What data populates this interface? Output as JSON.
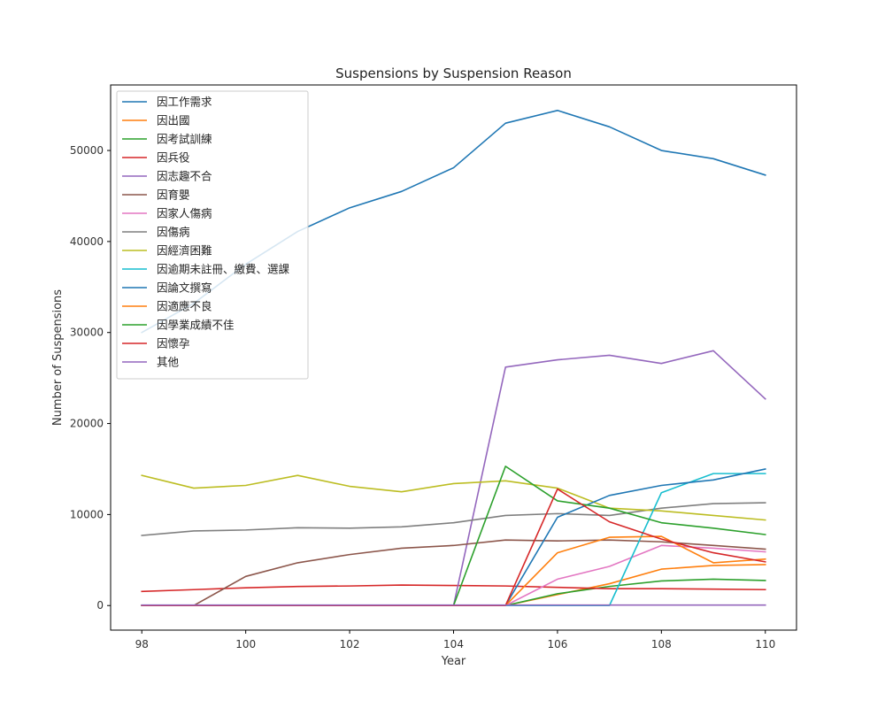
{
  "chart_data": {
    "type": "line",
    "title": "Suspensions by Suspension Reason",
    "xlabel": "Year",
    "ylabel": "Number of Suspensions",
    "x": [
      98,
      99,
      100,
      101,
      102,
      103,
      104,
      105,
      106,
      107,
      108,
      109,
      110
    ],
    "xticks": [
      "98",
      "100",
      "102",
      "104",
      "106",
      "108",
      "110"
    ],
    "yticks": [
      "0",
      "10000",
      "20000",
      "30000",
      "40000",
      "50000"
    ],
    "xlim": [
      97.4,
      110.6
    ],
    "ylim": [
      -2700,
      57200
    ],
    "grid": false,
    "legend_position": "upper-left",
    "series": [
      {
        "name": "因工作需求",
        "color": "#1f77b4",
        "values": [
          30000,
          33200,
          37500,
          41100,
          43700,
          45500,
          48100,
          53000,
          54400,
          52600,
          50000,
          49100,
          47300
        ]
      },
      {
        "name": "因出國",
        "color": "#ff7f0e",
        "values": [
          0,
          0,
          0,
          0,
          0,
          0,
          0,
          0,
          1200,
          2400,
          4000,
          4400,
          4500
        ]
      },
      {
        "name": "因考試訓練",
        "color": "#2ca02c",
        "values": [
          0,
          0,
          0,
          0,
          0,
          0,
          0,
          0,
          1300,
          2100,
          2700,
          2900,
          2750
        ]
      },
      {
        "name": "因兵役",
        "color": "#d62728",
        "values": [
          1550,
          1750,
          1950,
          2100,
          2150,
          2250,
          2200,
          2150,
          2000,
          1850,
          1850,
          1800,
          1750
        ]
      },
      {
        "name": "因志趣不合",
        "color": "#9467bd",
        "values": [
          0,
          0,
          0,
          0,
          0,
          0,
          0,
          26200,
          27000,
          27500,
          26600,
          28000,
          22700
        ]
      },
      {
        "name": "因育嬰",
        "color": "#8c564b",
        "values": [
          0,
          0,
          3200,
          4700,
          5600,
          6300,
          6600,
          7200,
          7100,
          7200,
          7000,
          6600,
          6200
        ]
      },
      {
        "name": "因家人傷病",
        "color": "#e377c2",
        "values": [
          0,
          0,
          0,
          0,
          0,
          0,
          0,
          0,
          2900,
          4300,
          6600,
          6300,
          5900
        ]
      },
      {
        "name": "因傷病",
        "color": "#7f7f7f",
        "values": [
          7700,
          8200,
          8300,
          8550,
          8500,
          8650,
          9100,
          9900,
          10100,
          9900,
          10700,
          11200,
          11300
        ]
      },
      {
        "name": "因經濟困難",
        "color": "#bcbd22",
        "values": [
          14300,
          12900,
          13200,
          14300,
          13100,
          12500,
          13400,
          13700,
          12900,
          10700,
          10400,
          9900,
          9400
        ]
      },
      {
        "name": "因逾期未註冊、繳費、選課",
        "color": "#17becf",
        "values": [
          0,
          0,
          0,
          0,
          0,
          0,
          0,
          0,
          0,
          0,
          12400,
          14500,
          14500
        ]
      },
      {
        "name": "因論文撰寫",
        "color": "#1f77b4",
        "values": [
          0,
          0,
          0,
          0,
          0,
          0,
          0,
          0,
          9700,
          12100,
          13200,
          13800,
          15000
        ]
      },
      {
        "name": "因適應不良",
        "color": "#ff7f0e",
        "values": [
          0,
          0,
          0,
          0,
          0,
          0,
          0,
          0,
          5800,
          7500,
          7600,
          4700,
          5100
        ]
      },
      {
        "name": "因學業成績不佳",
        "color": "#2ca02c",
        "values": [
          0,
          0,
          0,
          0,
          0,
          0,
          0,
          15300,
          11500,
          10700,
          9100,
          8500,
          7800
        ]
      },
      {
        "name": "因懷孕",
        "color": "#d62728",
        "values": [
          0,
          0,
          0,
          0,
          0,
          0,
          0,
          0,
          12800,
          9200,
          7300,
          5800,
          4800
        ]
      },
      {
        "name": "其他",
        "color": "#9467bd",
        "values": [
          50,
          50,
          50,
          50,
          50,
          50,
          50,
          50,
          50,
          50,
          50,
          50,
          50
        ]
      }
    ]
  }
}
